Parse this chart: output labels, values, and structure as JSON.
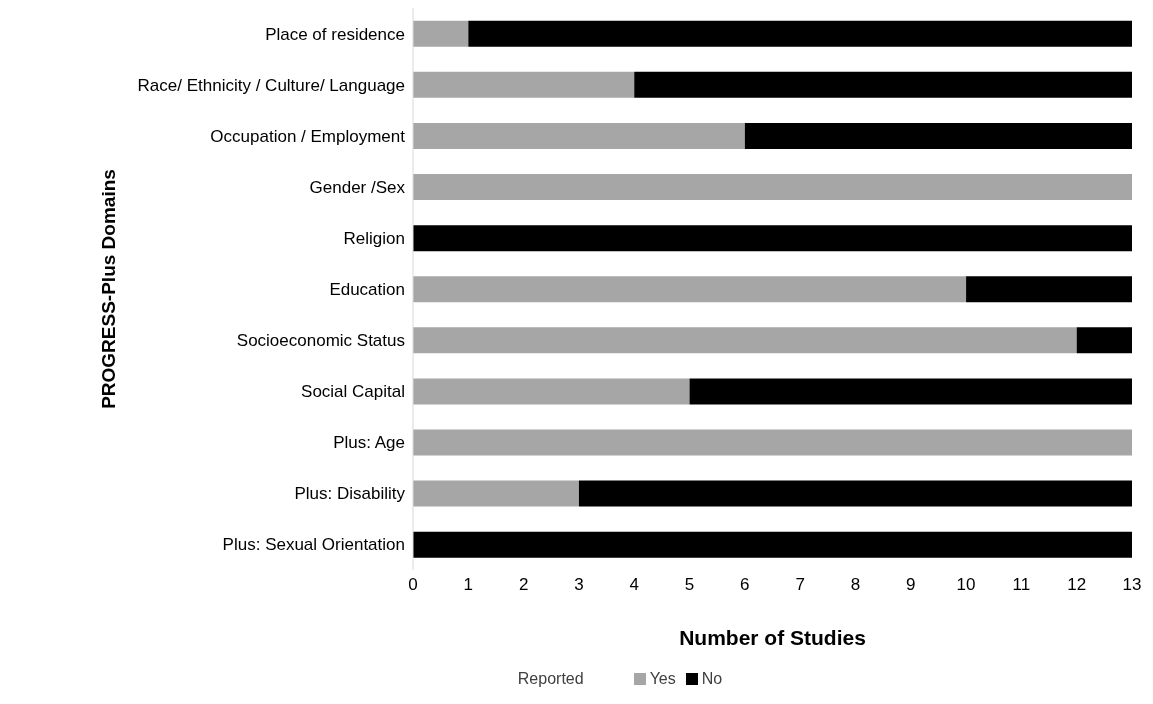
{
  "chart_data": {
    "type": "bar",
    "orientation": "horizontal",
    "stacked": true,
    "xlabel": "Number of Studies",
    "ylabel": "PROGRESS-Plus Domains",
    "legend_title": "Reported",
    "categories": [
      "Place of residence",
      "Race/ Ethnicity / Culture/ Language",
      "Occupation / Employment",
      "Gender /Sex",
      "Religion",
      "Education",
      "Socioeconomic Status",
      "Social Capital",
      "Plus: Age",
      "Plus: Disability",
      "Plus: Sexual Orientation"
    ],
    "series": [
      {
        "name": "Yes",
        "color": "#a6a6a6",
        "values": [
          1,
          4,
          6,
          13,
          0,
          10,
          12,
          5,
          13,
          3,
          0
        ]
      },
      {
        "name": "No",
        "color": "#000000",
        "values": [
          12,
          9,
          7,
          0,
          13,
          3,
          1,
          8,
          0,
          10,
          13
        ]
      }
    ],
    "xlim": [
      0,
      13
    ],
    "xticks": [
      0,
      1,
      2,
      3,
      4,
      5,
      6,
      7,
      8,
      9,
      10,
      11,
      12,
      13
    ],
    "grid": false,
    "legend": "bottom"
  }
}
